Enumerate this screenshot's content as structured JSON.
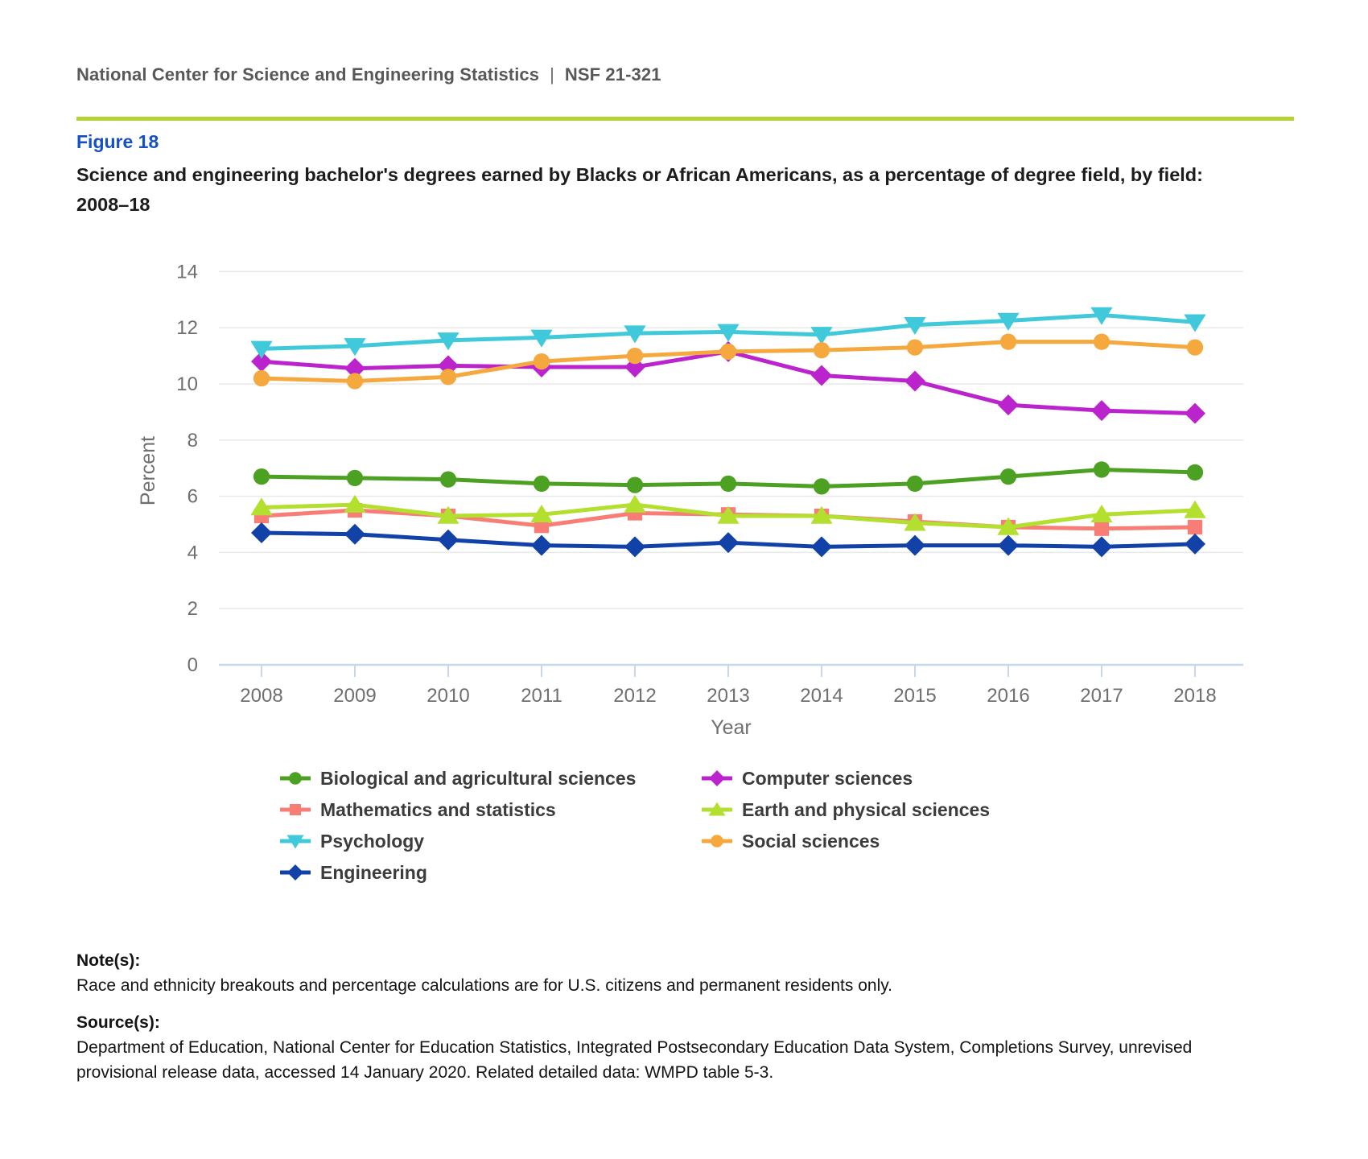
{
  "page": {
    "header": {
      "org": "National Center for Science and Engineering Statistics",
      "divider": "|",
      "report_id": "NSF 21-321"
    },
    "figure_label": "Figure 18",
    "title": "Science and engineering bachelor's degrees earned by Blacks or African Americans, as a percentage of degree field, by field: 2008–18",
    "notes": {
      "heading": "Note(s):",
      "body": "Race and ethnicity breakouts and percentage calculations are for U.S. citizens and permanent residents only."
    },
    "sources": {
      "heading": "Source(s):",
      "body": "Department of Education, National Center for Education Statistics, Integrated Postsecondary Education Data System, Completions Survey, unrevised provisional release data, accessed 14 January 2020. Related detailed data: WMPD table 5-3."
    }
  },
  "colors": {
    "accent_rule": "#b5d434",
    "figure_label_blue": "#1550c4",
    "header_text": "#57585a",
    "title_text": "#1c1c1c",
    "axis_text": "#6f6f6f",
    "gridline": "#e9e9e9",
    "axis_line": "#c9d7ea",
    "legend_text": "#3c3c3c"
  },
  "chart_data": {
    "type": "line",
    "title": "Science and engineering bachelor's degrees earned by Blacks or African Americans, as a percentage of degree field, by field: 2008–18",
    "x": [
      2008,
      2009,
      2010,
      2011,
      2012,
      2013,
      2014,
      2015,
      2016,
      2017,
      2018
    ],
    "xlabel": "Year",
    "ylabel": "Percent",
    "ylim": [
      0,
      14
    ],
    "yticks": [
      0,
      2,
      4,
      6,
      8,
      10,
      12,
      14
    ],
    "grid": true,
    "legend_position": "bottom-two-columns",
    "legend_columns": [
      [
        0,
        2,
        4,
        6
      ],
      [
        1,
        3,
        5
      ]
    ],
    "series": [
      {
        "name": "Biological and agricultural sciences",
        "marker": "circle",
        "color": "#4ca122",
        "values": [
          6.7,
          6.65,
          6.6,
          6.45,
          6.4,
          6.45,
          6.35,
          6.45,
          6.7,
          6.95,
          6.85
        ]
      },
      {
        "name": "Computer sciences",
        "marker": "diamond",
        "color": "#bb23cd",
        "values": [
          10.8,
          10.55,
          10.65,
          10.6,
          10.6,
          11.15,
          10.3,
          10.1,
          9.25,
          9.05,
          8.95
        ]
      },
      {
        "name": "Mathematics and statistics",
        "marker": "square",
        "color": "#f87d75",
        "values": [
          5.3,
          5.5,
          5.3,
          4.95,
          5.4,
          5.35,
          5.3,
          5.1,
          4.9,
          4.85,
          4.9
        ]
      },
      {
        "name": "Earth and physical sciences",
        "marker": "triangle-up",
        "color": "#b3df2e",
        "values": [
          5.6,
          5.7,
          5.3,
          5.35,
          5.7,
          5.3,
          5.3,
          5.05,
          4.9,
          5.35,
          5.5
        ]
      },
      {
        "name": "Psychology",
        "marker": "triangle-down",
        "color": "#3fc9da",
        "values": [
          11.25,
          11.35,
          11.55,
          11.65,
          11.8,
          11.85,
          11.75,
          12.1,
          12.25,
          12.45,
          12.2
        ]
      },
      {
        "name": "Social sciences",
        "marker": "circle",
        "color": "#f4a83e",
        "values": [
          10.2,
          10.1,
          10.25,
          10.8,
          11.0,
          11.15,
          11.2,
          11.3,
          11.5,
          11.5,
          11.3
        ]
      },
      {
        "name": "Engineering",
        "marker": "diamond",
        "color": "#1242a8",
        "values": [
          4.7,
          4.65,
          4.45,
          4.25,
          4.2,
          4.35,
          4.2,
          4.25,
          4.25,
          4.2,
          4.3
        ]
      }
    ]
  }
}
